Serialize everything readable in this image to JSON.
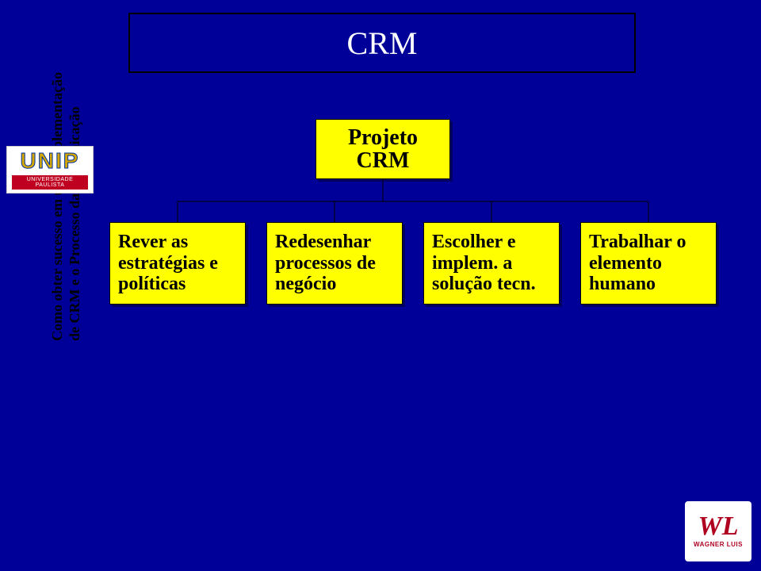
{
  "background_color": "#000099",
  "side_title": {
    "line1": "Como obter sucesso em uma implementação",
    "line2": "de CRM e o Processo da Comunicação",
    "color": "#000000",
    "fontsize": 18
  },
  "unip_logo": {
    "text": "UNIP",
    "subtitle": "UNIVERSIDADE PAULISTA",
    "text_color": "#d4a800",
    "outline_color": "#0030a0",
    "bar_color": "#c00020"
  },
  "wl_logo": {
    "initials": "WL",
    "name": "WAGNER LUIS",
    "color": "#b00020"
  },
  "title_box": {
    "text": "CRM",
    "bg_color": "#000099",
    "border_color": "#000000",
    "text_color": "#ffffff",
    "fontsize": 40
  },
  "diagram": {
    "type": "tree",
    "node_bg": "#ffff00",
    "node_border": "#000000",
    "node_text_color": "#000000",
    "line_color": "#000000",
    "line_width": 1,
    "root": {
      "label": "Projeto\nCRM",
      "fontsize": 28
    },
    "children": [
      {
        "label": "Rever as estratégias e políticas",
        "fontsize": 24
      },
      {
        "label": "Redesenhar processos de negócio",
        "fontsize": 24
      },
      {
        "label": "Escolher e implem. a solução tecn.",
        "fontsize": 24
      },
      {
        "label": "Trabalhar o elemento humano",
        "fontsize": 24
      }
    ]
  }
}
